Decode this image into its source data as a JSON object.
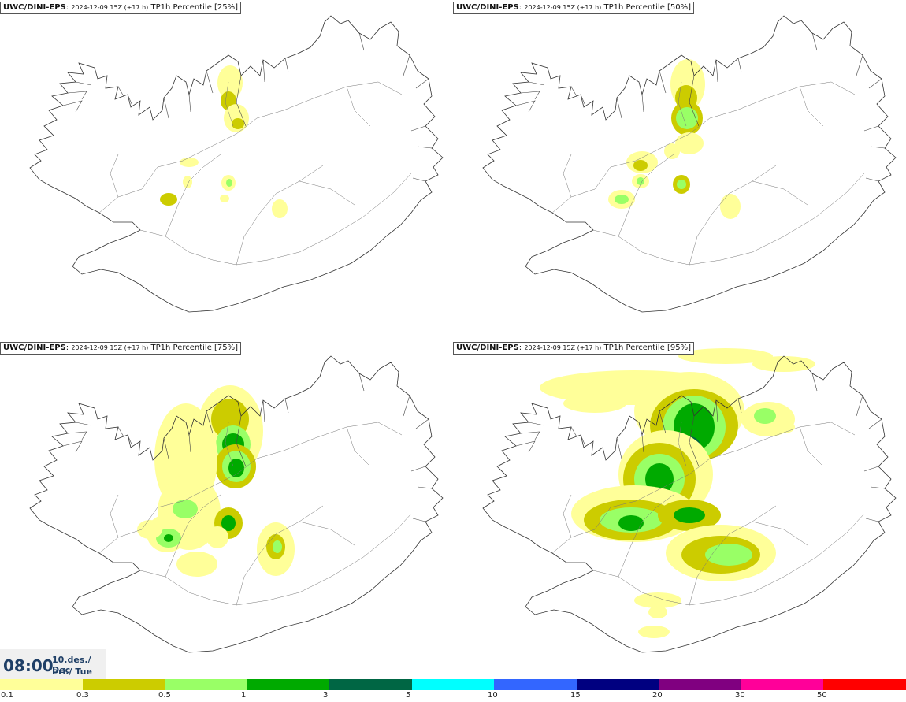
{
  "panels": [
    {
      "model": "UWC/DINI-EPS",
      "run": "2024-12-09 15Z (+17 h)",
      "product": "TP1h Percentile [25%]"
    },
    {
      "model": "UWC/DINI-EPS",
      "run": "2024-12-09 15Z (+17 h)",
      "product": "TP1h Percentile [50%]"
    },
    {
      "model": "UWC/DINI-EPS",
      "run": "2024-12-09 15Z (+17 h)",
      "product": "TP1h Percentile [75%]"
    },
    {
      "model": "UWC/DINI-EPS",
      "run": "2024-12-09 15Z (+17 h)",
      "product": "TP1h Percentile [95%]"
    }
  ],
  "valid_time": {
    "time": "08:00",
    "date_line": "10.des./ Dec",
    "day_line": "Þri./ Tue"
  },
  "legend": {
    "ticks": [
      "0.1",
      "0.3",
      "0.5",
      "1",
      "3",
      "5",
      "10",
      "15",
      "20",
      "30",
      "50"
    ],
    "colors": [
      "#ffff99",
      "#cccc00",
      "#99ff66",
      "#00aa00",
      "#006644",
      "#00ffff",
      "#3366ff",
      "#000080",
      "#800080",
      "#ff0099",
      "#ff0000"
    ]
  }
}
